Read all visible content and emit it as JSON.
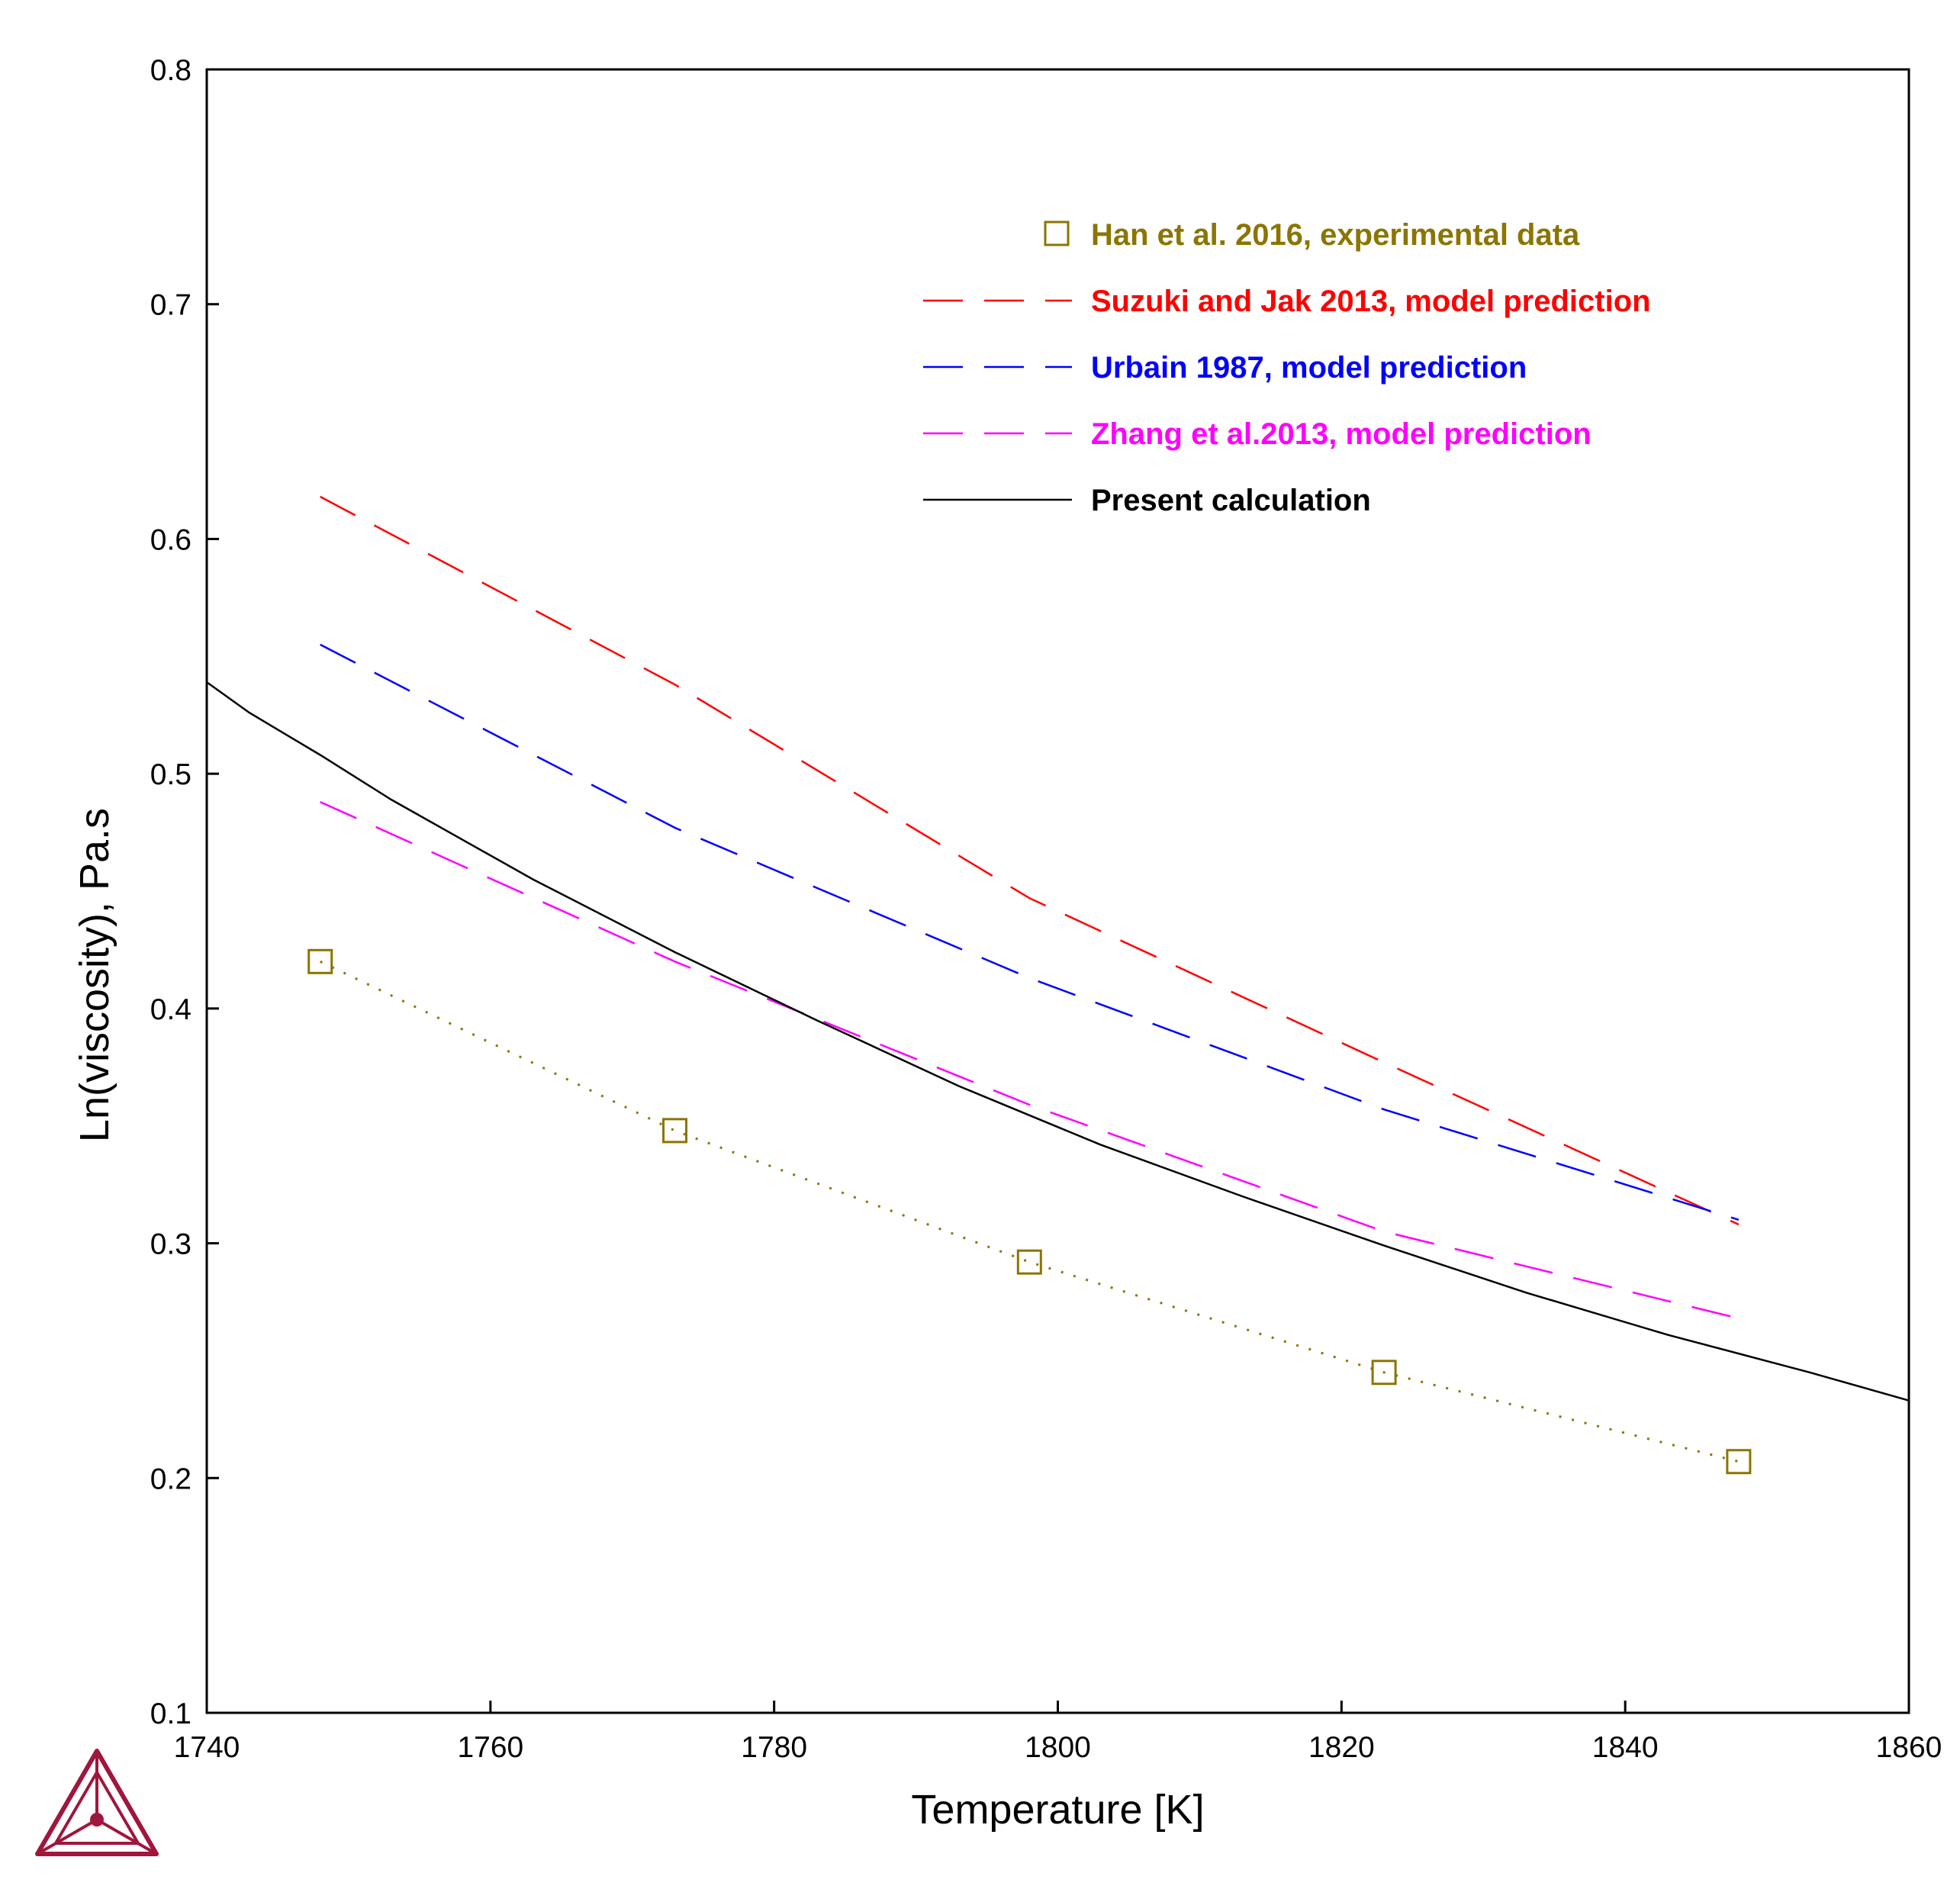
{
  "chart_data": {
    "type": "line",
    "title": "",
    "xlabel": "Temperature [K]",
    "ylabel": "Ln(viscosity), Pa.s",
    "xlim": [
      1740,
      1860
    ],
    "ylim": [
      0.1,
      0.8
    ],
    "xticks": [
      1740,
      1760,
      1780,
      1800,
      1820,
      1840,
      1860
    ],
    "yticks": [
      0.1,
      0.2,
      0.3,
      0.4,
      0.5,
      0.6,
      0.7,
      0.8
    ],
    "xtick_labels": [
      "1740",
      "1760",
      "1780",
      "1800",
      "1820",
      "1840",
      "1860"
    ],
    "ytick_labels": [
      "0.1",
      "0.2",
      "0.3",
      "0.4",
      "0.5",
      "0.6",
      "0.7",
      "0.8"
    ],
    "grid": false,
    "legend_position": "top-right",
    "series": [
      {
        "name": "Han et al. 2016, experimental data",
        "style": "markers-dotted",
        "marker": "square",
        "color": "#8B7500",
        "x": [
          1748,
          1773,
          1798,
          1823,
          1848
        ],
        "y": [
          0.42,
          0.348,
          0.292,
          0.245,
          0.207
        ]
      },
      {
        "name": "Suzuki and Jak 2013, model prediction",
        "style": "dashed",
        "color": "#FF0000",
        "x": [
          1748,
          1773,
          1798,
          1823,
          1848
        ],
        "y": [
          0.618,
          0.538,
          0.447,
          0.377,
          0.308
        ]
      },
      {
        "name": "Urbain 1987, model prediction",
        "style": "dashed",
        "color": "#0000FF",
        "x": [
          1748,
          1773,
          1798,
          1823,
          1848
        ],
        "y": [
          0.555,
          0.477,
          0.413,
          0.357,
          0.31
        ]
      },
      {
        "name": "Zhang et al.2013, model prediction",
        "style": "dashed",
        "color": "#FF00FF",
        "x": [
          1748,
          1773,
          1798,
          1823,
          1848
        ],
        "y": [
          0.488,
          0.42,
          0.359,
          0.305,
          0.268
        ]
      },
      {
        "name": "Present calculation",
        "style": "solid",
        "color": "#000000",
        "x": [
          1740,
          1743,
          1748,
          1753,
          1758,
          1763,
          1773,
          1783,
          1793,
          1803,
          1813,
          1823,
          1833,
          1843,
          1853,
          1860
        ],
        "y": [
          0.539,
          0.526,
          0.508,
          0.489,
          0.472,
          0.455,
          0.424,
          0.395,
          0.367,
          0.342,
          0.32,
          0.299,
          0.279,
          0.261,
          0.245,
          0.233
        ]
      }
    ]
  }
}
